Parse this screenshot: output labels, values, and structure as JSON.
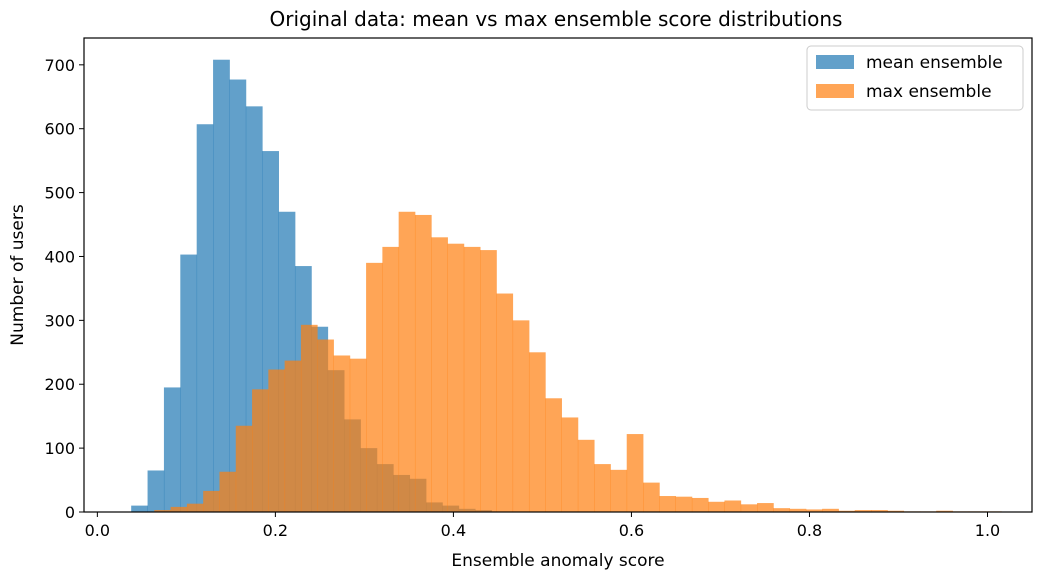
{
  "chart_data": {
    "type": "bar",
    "title": "Original data: mean vs max ensemble score distributions",
    "xlabel": "Ensemble anomaly score",
    "ylabel": "Number of users",
    "xlim": [
      -0.015,
      1.05
    ],
    "ylim": [
      0,
      742
    ],
    "xticks": [
      0.0,
      0.2,
      0.4,
      0.6,
      0.8,
      1.0
    ],
    "xtick_labels": [
      "0.0",
      "0.2",
      "0.4",
      "0.6",
      "0.8",
      "1.0"
    ],
    "yticks": [
      0,
      100,
      200,
      300,
      400,
      500,
      600,
      700
    ],
    "ytick_labels": [
      "0",
      "100",
      "200",
      "300",
      "400",
      "500",
      "600",
      "700"
    ],
    "grid": false,
    "legend_position": "top-right",
    "alpha": 0.7,
    "series": [
      {
        "name": "mean ensemble",
        "color": "#1f77b4",
        "bin_start": 0.038,
        "bin_width": 0.0184,
        "values": [
          10,
          65,
          195,
          403,
          607,
          708,
          677,
          635,
          565,
          470,
          385,
          290,
          222,
          145,
          100,
          75,
          58,
          52,
          15,
          10,
          5,
          3
        ]
      },
      {
        "name": "max ensemble",
        "color": "#ff7f0e",
        "bin_start": 0.064,
        "bin_width": 0.0183,
        "values": [
          3,
          8,
          13,
          33,
          63,
          135,
          192,
          223,
          237,
          293,
          270,
          245,
          240,
          390,
          415,
          470,
          465,
          430,
          420,
          415,
          410,
          342,
          300,
          250,
          178,
          148,
          113,
          75,
          66,
          122,
          46,
          25,
          24,
          22,
          16,
          18,
          12,
          14,
          6,
          5,
          4,
          5,
          2,
          3,
          3,
          2,
          1,
          1,
          2,
          1,
          1,
          1
        ]
      }
    ]
  }
}
